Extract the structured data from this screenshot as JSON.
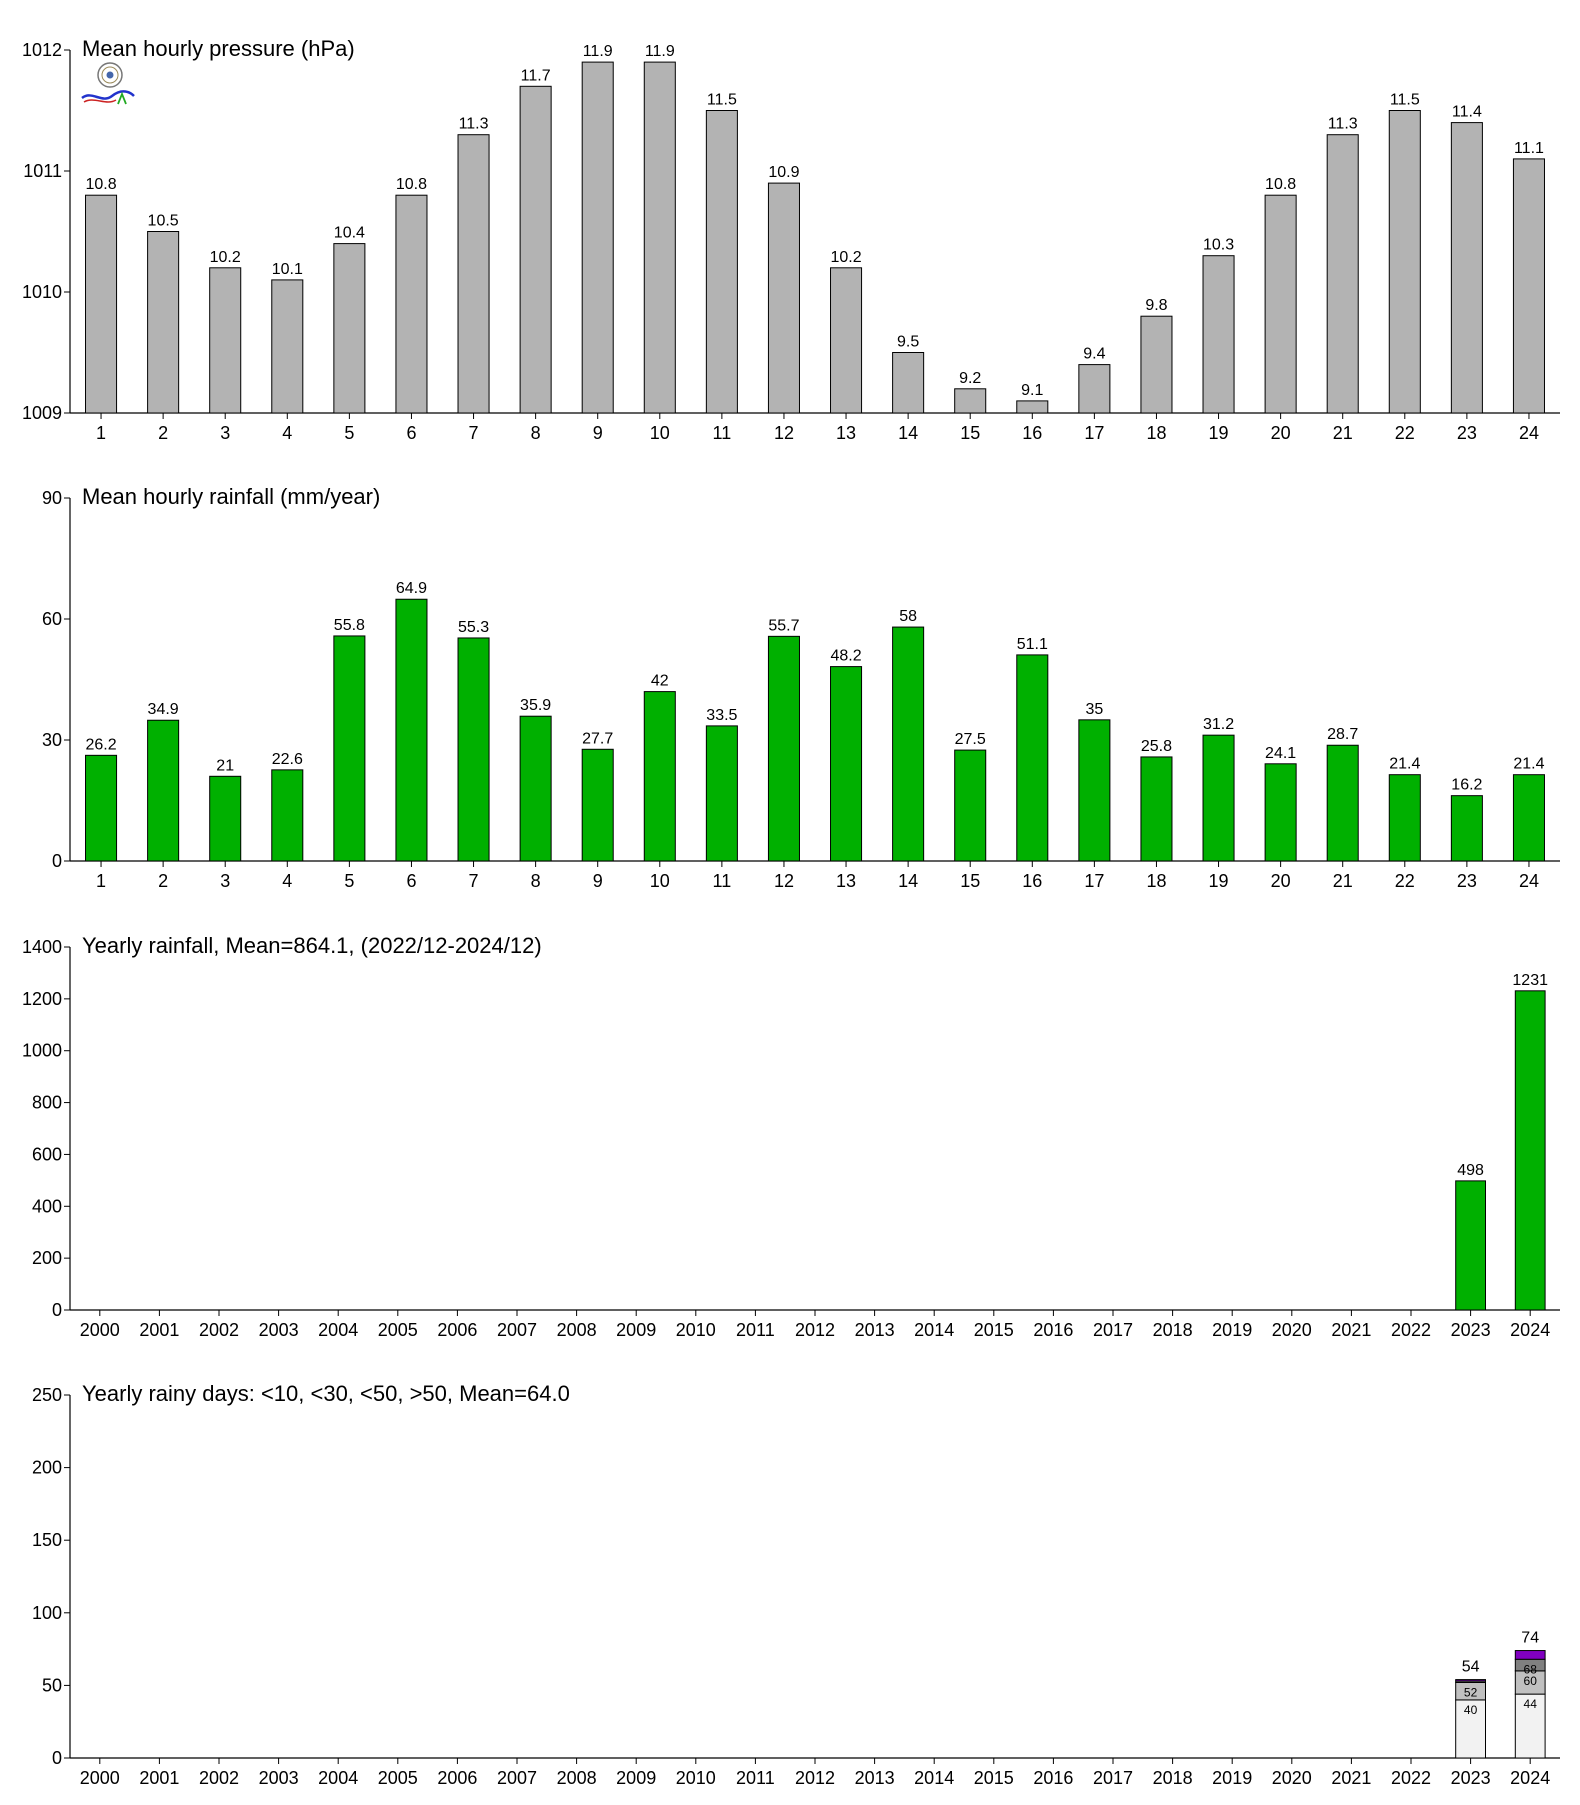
{
  "chart_data": [
    {
      "type": "bar",
      "title": "Mean hourly pressure (hPa)",
      "categories": [
        "1",
        "2",
        "3",
        "4",
        "5",
        "6",
        "7",
        "8",
        "9",
        "10",
        "11",
        "12",
        "13",
        "14",
        "15",
        "16",
        "17",
        "18",
        "19",
        "20",
        "21",
        "22",
        "23",
        "24"
      ],
      "values": [
        1010.8,
        1010.5,
        1010.2,
        1010.1,
        1010.4,
        1010.8,
        1011.3,
        1011.7,
        1011.9,
        1011.9,
        1011.5,
        1010.9,
        1010.2,
        1009.5,
        1009.2,
        1009.1,
        1009.4,
        1009.8,
        1010.3,
        1010.8,
        1011.3,
        1011.5,
        1011.4,
        1011.1
      ],
      "labels": [
        "10.8",
        "10.5",
        "10.2",
        "10.1",
        "10.4",
        "10.8",
        "11.3",
        "11.7",
        "11.9",
        "11.9",
        "11.5",
        "10.9",
        "10.2",
        "9.5",
        "9.2",
        "9.1",
        "9.4",
        "9.8",
        "10.3",
        "10.8",
        "11.3",
        "11.5",
        "11.4",
        "11.1"
      ],
      "ylim": [
        1009,
        1012
      ],
      "yticks": [
        "1009",
        "1010",
        "1011",
        "1012"
      ],
      "color": "#b3b3b3"
    },
    {
      "type": "bar",
      "title": "Mean hourly rainfall (mm/year)",
      "categories": [
        "1",
        "2",
        "3",
        "4",
        "5",
        "6",
        "7",
        "8",
        "9",
        "10",
        "11",
        "12",
        "13",
        "14",
        "15",
        "16",
        "17",
        "18",
        "19",
        "20",
        "21",
        "22",
        "23",
        "24"
      ],
      "values": [
        26.2,
        34.9,
        21,
        22.6,
        55.8,
        64.9,
        55.3,
        35.9,
        27.7,
        42,
        33.5,
        55.7,
        48.2,
        58,
        27.5,
        51.1,
        35,
        25.8,
        31.2,
        24.1,
        28.7,
        21.4,
        16.2,
        21.4
      ],
      "labels": [
        "26.2",
        "34.9",
        "21",
        "22.6",
        "55.8",
        "64.9",
        "55.3",
        "35.9",
        "27.7",
        "42",
        "33.5",
        "55.7",
        "48.2",
        "58",
        "27.5",
        "51.1",
        "35",
        "25.8",
        "31.2",
        "24.1",
        "28.7",
        "21.4",
        "16.2",
        "21.4"
      ],
      "ylim": [
        0,
        90
      ],
      "yticks": [
        "0",
        "30",
        "60",
        "90"
      ],
      "color": "#00b000"
    },
    {
      "type": "bar",
      "title": "Yearly rainfall, Mean=864.1, (2022/12-2024/12)",
      "categories": [
        "2000",
        "2001",
        "2002",
        "2003",
        "2004",
        "2005",
        "2006",
        "2007",
        "2008",
        "2009",
        "2010",
        "2011",
        "2012",
        "2013",
        "2014",
        "2015",
        "2016",
        "2017",
        "2018",
        "2019",
        "2020",
        "2021",
        "2022",
        "2023",
        "2024"
      ],
      "values": [
        null,
        null,
        null,
        null,
        null,
        null,
        null,
        null,
        null,
        null,
        null,
        null,
        null,
        null,
        null,
        null,
        null,
        null,
        null,
        null,
        null,
        null,
        null,
        498,
        1231
      ],
      "labels": [
        "",
        "",
        "",
        "",
        "",
        "",
        "",
        "",
        "",
        "",
        "",
        "",
        "",
        "",
        "",
        "",
        "",
        "",
        "",
        "",
        "",
        "",
        "",
        "498",
        "1231"
      ],
      "ylim": [
        0,
        1400
      ],
      "yticks": [
        "0",
        "200",
        "400",
        "600",
        "800",
        "1000",
        "1200",
        "1400"
      ],
      "color": "#00b000"
    },
    {
      "type": "bar",
      "stacked": true,
      "title": "Yearly rainy days: <10, <30, <50, >50, Mean=64.0",
      "categories": [
        "2000",
        "2001",
        "2002",
        "2003",
        "2004",
        "2005",
        "2006",
        "2007",
        "2008",
        "2009",
        "2010",
        "2011",
        "2012",
        "2013",
        "2014",
        "2015",
        "2016",
        "2017",
        "2018",
        "2019",
        "2020",
        "2021",
        "2022",
        "2023",
        "2024"
      ],
      "stacks": [
        {
          "category": "2023",
          "cumulative": [
            40,
            52,
            53,
            54
          ],
          "segment_labels": [
            "40",
            "52",
            "",
            ""
          ],
          "total_label": "54"
        },
        {
          "category": "2024",
          "cumulative": [
            44,
            60,
            68,
            74
          ],
          "segment_labels": [
            "44",
            "60",
            "68",
            ""
          ],
          "total_label": "74"
        }
      ],
      "segment_colors": [
        "#f2f2f2",
        "#c0c0c0",
        "#808080",
        "#8000c0"
      ],
      "ylim": [
        0,
        250
      ],
      "yticks": [
        "0",
        "50",
        "100",
        "150",
        "200",
        "250"
      ]
    }
  ]
}
